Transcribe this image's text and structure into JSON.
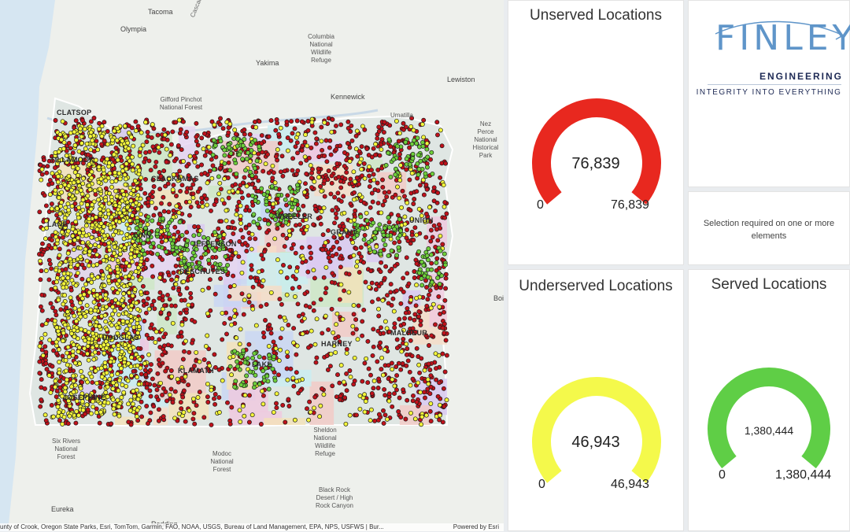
{
  "map": {
    "county_labels": [
      "CLATSOP",
      "TILLAMOOK",
      "CLACKAMAS",
      "LINN",
      "JEFFERSON",
      "DESCHUTES",
      "GRANT",
      "HARNEY",
      "MALHEUR",
      "LAKE",
      "KLAMATH",
      "JOSEPHINE",
      "DOUGLAS",
      "UNION",
      "WHEELER",
      "LANE"
    ],
    "place_labels": {
      "tacoma": "Tacoma",
      "olympia": "Olympia",
      "yakima": "Yakima",
      "kennewick": "Kennewick",
      "lewiston": "Lewiston",
      "umatilla": "Umatilla",
      "eureka": "Eureka",
      "redding": "Redding",
      "cascade_range": "Cascade Range",
      "columbia_refuge": "Columbia National Wildlife Refuge",
      "gifford": "Gifford Pinchot National Forest",
      "nez_perce": "Nez Perce National Historical Park",
      "six_rivers": "Six Rivers National Forest",
      "modoc": "Modoc National Forest",
      "sheldon": "Sheldon National Wildlife Refuge",
      "black_rock": "Black Rock Desert / High Rock Canyon",
      "boise_fragment": "Boi"
    },
    "attribution": "unty of Crook, Oregon State Parks, Esri, TomTom, Garmin, FAO, NOAA, USGS, Bureau of Land Management, EPA, NPS, USFWS | Bur...",
    "powered_by": "Powered by Esri",
    "colors": {
      "unserved": "#c0121b",
      "underserved": "#f3f53a",
      "served": "#6fcf3b"
    }
  },
  "unserved": {
    "title": "Unserved Locations",
    "value": "76,839",
    "min": "0",
    "max": "76,839",
    "color": "#e8281f",
    "fraction": 1.0
  },
  "underserved": {
    "title": "Underserved Locations",
    "value": "46,943",
    "min": "0",
    "max": "46,943",
    "color": "#f4f94b",
    "fraction": 1.0
  },
  "served": {
    "title": "Served Locations",
    "value": "1,380,444",
    "min": "0",
    "max": "1,380,444",
    "color": "#5fce46",
    "fraction": 1.0
  },
  "logo": {
    "name": "FINLEY",
    "subtitle": "ENGINEERING",
    "tagline": "INTEGRITY INTO EVERYTHING",
    "color": "#5f95c9"
  },
  "selection": {
    "message": "Selection required on one or more elements"
  }
}
